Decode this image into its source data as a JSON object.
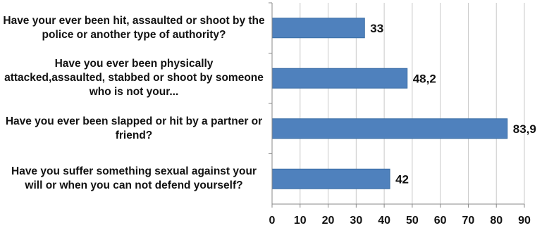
{
  "chart_data": {
    "type": "bar",
    "orientation": "horizontal",
    "categories": [
      "Have your ever been hit, assaulted or shoot by the police or another type of authority?",
      "Have you ever been physically attacked,assaulted, stabbed or shoot by someone who is not your...",
      "Have you ever been slapped or hit by a partner or friend?",
      "Have you suffer something sexual against your will or when you can not defend yourself?"
    ],
    "values": [
      33,
      48.2,
      83.9,
      42
    ],
    "data_labels": [
      "33",
      "48,2",
      "83,9",
      "42"
    ],
    "xlim": [
      0,
      90
    ],
    "x_ticks": [
      "0",
      "10",
      "20",
      "30",
      "40",
      "50",
      "60",
      "70",
      "80",
      "90"
    ],
    "grid": "vertical",
    "bar_color": "#4f81bd",
    "bar_border_color": "#3a6ea5",
    "gridline_color": "#c8c8c8",
    "axis_color": "#888888",
    "text_color": "#111111"
  }
}
